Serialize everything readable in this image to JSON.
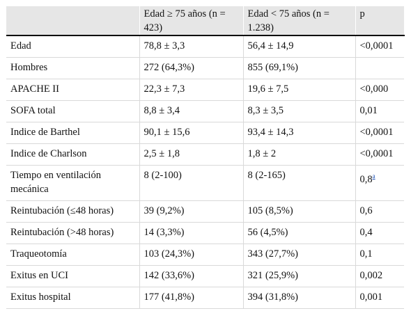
{
  "table": {
    "headers": [
      "",
      "Edad ≥ 75 años (n = 423)",
      "Edad < 75 años (n = 1.238)",
      "p"
    ],
    "rows": [
      {
        "label": "Edad",
        "old": "78,8 ± 3,3",
        "young": "56,4 ± 14,9",
        "p": "<0,0001"
      },
      {
        "label": "Hombres",
        "old": "272 (64,3%)",
        "young": "855 (69,1%)",
        "p": ""
      },
      {
        "label": "APACHE II",
        "old": "22,3 ± 7,3",
        "young": "19,6 ± 7,5",
        "p": "<0,000"
      },
      {
        "label": "SOFA total",
        "old": "8,8 ± 3,4",
        "young": "8,3 ± 3,5",
        "p": "0,01"
      },
      {
        "label": "Indice de Barthel",
        "old": "90,1 ± 15,6",
        "young": "93,4 ± 14,3",
        "p": "<0,0001"
      },
      {
        "label": "Indice de Charlson",
        "old": "2,5 ± 1,8",
        "young": "1,8 ± 2",
        "p": "<0,0001"
      },
      {
        "label": "Tiempo en ventilación mecánica",
        "old": "8 (2-100)",
        "young": "8 (2-165)",
        "p": "0,8",
        "p_note": "a"
      },
      {
        "label": "Reintubación (≤48 horas)",
        "old": "39 (9,2%)",
        "young": "105 (8,5%)",
        "p": "0,6"
      },
      {
        "label": "Reintubación (>48 horas)",
        "old": "14 (3,3%)",
        "young": "56 (4,5%)",
        "p": "0,4"
      },
      {
        "label": "Traqueotomía",
        "old": "103 (24,3%)",
        "young": "343 (27,7%)",
        "p": "0,1"
      },
      {
        "label": "Exitus en UCI",
        "old": "142 (33,6%)",
        "young": "321 (25,9%)",
        "p": "0,002"
      },
      {
        "label": "Exitus hospital",
        "old": "177 (41,8%)",
        "young": "394 (31,8%)",
        "p": "0,001"
      }
    ]
  },
  "colors": {
    "header_bg": "#e6e6e6",
    "link": "#1a4fb5",
    "rule": "#000000"
  }
}
